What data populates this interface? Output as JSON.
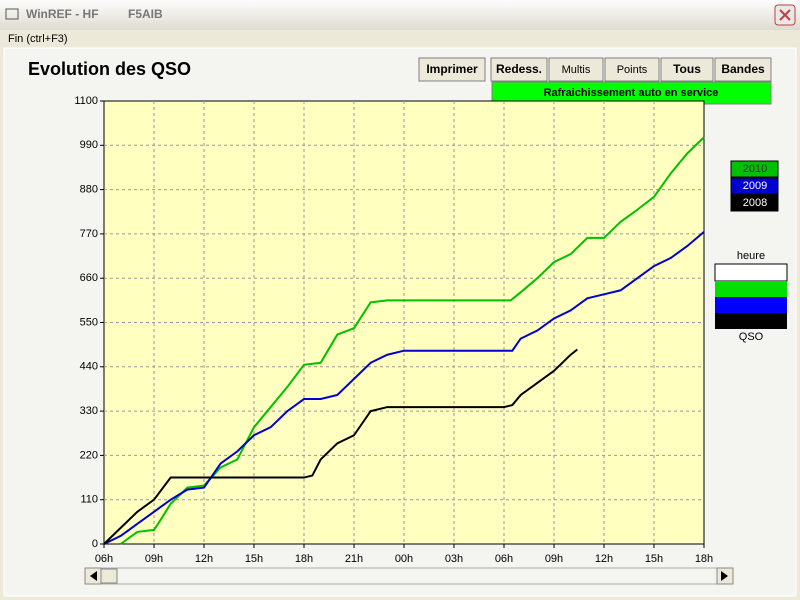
{
  "window": {
    "title": "WinREF - HF",
    "callsign": "F5AIB"
  },
  "menu": [
    "Fin (ctrl+F3)"
  ],
  "toolbar": {
    "buttons": [
      "Imprimer",
      "Redess.",
      "Multis",
      "Points",
      "Tous",
      "Bandes"
    ],
    "status": "Rafraichissement auto en service"
  },
  "scale": {
    "top": "heure",
    "bottom": "QSO"
  },
  "chart_data": {
    "type": "line",
    "title": "Evolution des QSO",
    "xlim": [
      0,
      36
    ],
    "xticks": [
      {
        "value": 0,
        "label": "06h"
      },
      {
        "value": 3,
        "label": "09h"
      },
      {
        "value": 6,
        "label": "12h"
      },
      {
        "value": 9,
        "label": "15h"
      },
      {
        "value": 12,
        "label": "18h"
      },
      {
        "value": 15,
        "label": "21h"
      },
      {
        "value": 18,
        "label": "00h"
      },
      {
        "value": 21,
        "label": "03h"
      },
      {
        "value": 24,
        "label": "06h"
      },
      {
        "value": 27,
        "label": "09h"
      },
      {
        "value": 30,
        "label": "12h"
      },
      {
        "value": 33,
        "label": "15h"
      },
      {
        "value": 36,
        "label": "18h"
      }
    ],
    "ylim": [
      0,
      1100
    ],
    "yticks": [
      0,
      110,
      220,
      330,
      440,
      550,
      660,
      770,
      880,
      990,
      1100
    ],
    "grid": true,
    "series": [
      {
        "name": "2010",
        "color": "#00c000",
        "x": [
          1,
          2,
          3,
          3.4,
          4,
          5,
          6,
          7,
          8,
          9,
          10,
          11,
          12,
          13,
          14,
          15,
          16,
          17,
          24.4,
          25,
          26,
          27,
          28,
          29,
          30,
          31,
          32,
          33,
          34,
          35,
          36
        ],
        "values": [
          0,
          30,
          35,
          60,
          100,
          140,
          145,
          190,
          210,
          290,
          340,
          390,
          445,
          450,
          520,
          536,
          600,
          605,
          605,
          625,
          660,
          700,
          720,
          760,
          760,
          800,
          830,
          862,
          920,
          970,
          1010
        ]
      },
      {
        "name": "2009",
        "color": "#0000d0",
        "x": [
          0,
          1,
          2,
          3,
          4,
          5,
          6,
          7,
          8,
          9,
          10,
          11,
          12,
          13,
          14,
          15,
          16,
          17,
          18,
          24.5,
          25,
          26,
          27,
          28,
          29,
          30,
          31,
          32,
          33,
          34,
          35,
          36
        ],
        "values": [
          0,
          20,
          50,
          80,
          110,
          135,
          140,
          200,
          230,
          270,
          290,
          330,
          360,
          360,
          370,
          410,
          450,
          470,
          480,
          480,
          510,
          530,
          560,
          580,
          610,
          620,
          630,
          660,
          690,
          710,
          740,
          775
        ]
      },
      {
        "name": "2008",
        "color": "#000000",
        "x": [
          0,
          1,
          2,
          3,
          4,
          5,
          12,
          12.5,
          13,
          14,
          15,
          16,
          17,
          24,
          24.5,
          25,
          26,
          27,
          28,
          28.4
        ],
        "values": [
          0,
          40,
          80,
          110,
          165,
          165,
          165,
          170,
          210,
          250,
          270,
          330,
          340,
          340,
          345,
          370,
          400,
          430,
          470,
          483
        ]
      }
    ]
  }
}
